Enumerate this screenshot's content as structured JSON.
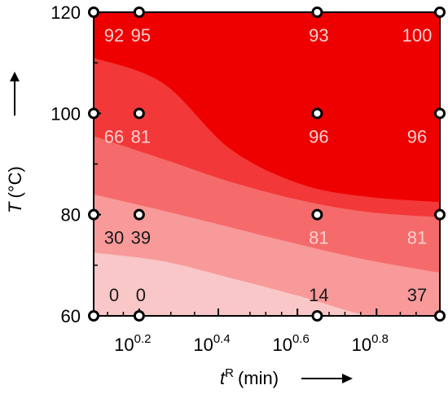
{
  "chart_data": {
    "type": "heatmap",
    "subtype": "filled-contour",
    "title": "",
    "xlabel": {
      "symbol": "t",
      "superscript": "R",
      "unit": "(min)",
      "arrow": "right"
    },
    "ylabel": {
      "symbol": "T",
      "unit": "(°C)",
      "arrow": "up"
    },
    "x_scale": "log10",
    "x_ticks": [
      {
        "base": "10",
        "exp": "0.2"
      },
      {
        "base": "10",
        "exp": "0.4"
      },
      {
        "base": "10",
        "exp": "0.6"
      },
      {
        "base": "10",
        "exp": "0.8"
      }
    ],
    "x_tick_log_values": [
      0.2,
      0.4,
      0.6,
      0.8
    ],
    "xlim_log": [
      0.085,
      0.96
    ],
    "ylim": [
      60,
      120
    ],
    "y_ticks": [
      "60",
      "80",
      "100",
      "120"
    ],
    "y_tick_values": [
      60,
      80,
      100,
      120
    ],
    "sample_points": [
      {
        "log_t": 0.085,
        "T": 120,
        "value": "92"
      },
      {
        "log_t": 0.2,
        "T": 120,
        "value": "95"
      },
      {
        "log_t": 0.65,
        "T": 120,
        "value": "93"
      },
      {
        "log_t": 0.96,
        "T": 120,
        "value": "100"
      },
      {
        "log_t": 0.085,
        "T": 100,
        "value": "66"
      },
      {
        "log_t": 0.2,
        "T": 100,
        "value": "81"
      },
      {
        "log_t": 0.65,
        "T": 100,
        "value": "96"
      },
      {
        "log_t": 0.96,
        "T": 100,
        "value": "96"
      },
      {
        "log_t": 0.085,
        "T": 80,
        "value": "30"
      },
      {
        "log_t": 0.2,
        "T": 80,
        "value": "39"
      },
      {
        "log_t": 0.65,
        "T": 80,
        "value": "81"
      },
      {
        "log_t": 0.96,
        "T": 80,
        "value": "81"
      },
      {
        "log_t": 0.085,
        "T": 60,
        "value": "0"
      },
      {
        "log_t": 0.2,
        "T": 60,
        "value": "0"
      },
      {
        "log_t": 0.65,
        "T": 60,
        "value": "14"
      },
      {
        "log_t": 0.96,
        "T": 60,
        "value": "37"
      }
    ],
    "contour_bands": [
      {
        "color": "#f9c7c7",
        "boundary_T": [
          72.5,
          70.8,
          67.5,
          63.8,
          60.0,
          58.5
        ]
      },
      {
        "color": "#f89a9a",
        "boundary_T": [
          84.0,
          80.8,
          77.5,
          74.0,
          71.0,
          68.5
        ]
      },
      {
        "color": "#f56b6b",
        "boundary_T": [
          95.5,
          91.0,
          86.5,
          82.8,
          80.5,
          79.5
        ]
      },
      {
        "color": "#f23838",
        "boundary_T": [
          111.0,
          106.0,
          93.0,
          86.0,
          83.5,
          82.5
        ]
      },
      {
        "color": "#ee0000",
        "boundary_T": [
          120.0,
          120.0,
          120.0,
          120.0,
          120.0,
          120.0
        ]
      }
    ],
    "band_boundary_log_t": [
      0.085,
      0.26,
      0.43,
      0.61,
      0.78,
      0.96
    ],
    "grid": false,
    "legend": "none",
    "colors": {
      "dark_label": "#1a1a1a",
      "light_label": "#f4d0d0",
      "marker_fill": "#ffffff",
      "marker_stroke": "#000000"
    }
  }
}
